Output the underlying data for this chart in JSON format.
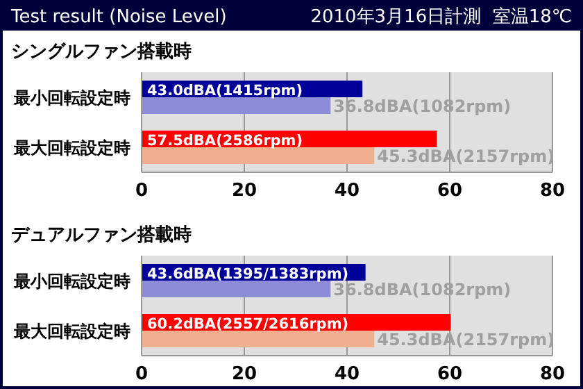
{
  "chart_data": [
    {
      "type": "bar",
      "orientation": "horizontal",
      "title": "Test result (Noise Level)",
      "subtitle": "シングルファン搭載時",
      "annotations": [
        "2010年3月16日計測  室温18℃"
      ],
      "categories": [
        "最小回転設定時",
        "最大回転設定時"
      ],
      "xlim": [
        0,
        80
      ],
      "xticks": [
        0,
        20,
        40,
        60,
        80
      ],
      "grid": "x",
      "series": [
        {
          "values": [
            43.0,
            57.5
          ],
          "colors": [
            "#000099",
            "#ff0000"
          ],
          "value_labels": [
            "43.0dBA(1415rpm)",
            "57.5dBA(2586rpm)"
          ]
        },
        {
          "values": [
            36.8,
            45.3
          ],
          "colors": [
            "#8c8cd9",
            "#f0b090"
          ],
          "value_labels": [
            "36.8dBA(1082rpm)",
            "45.3dBA(2157rpm)"
          ]
        }
      ]
    },
    {
      "type": "bar",
      "orientation": "horizontal",
      "subtitle": "デュアルファン搭載時",
      "categories": [
        "最小回転設定時",
        "最大回転設定時"
      ],
      "xlim": [
        0,
        80
      ],
      "xticks": [
        0,
        20,
        40,
        60,
        80
      ],
      "grid": "x",
      "series": [
        {
          "values": [
            43.6,
            60.2
          ],
          "colors": [
            "#000099",
            "#ff0000"
          ],
          "value_labels": [
            "43.6dBA(1395/1383rpm)",
            "60.2dBA(2557/2616rpm)"
          ]
        },
        {
          "values": [
            36.8,
            45.3
          ],
          "colors": [
            "#8c8cd9",
            "#f0b090"
          ],
          "value_labels": [
            "36.8dBA(1082rpm)",
            "45.3dBA(2157rpm)"
          ]
        }
      ]
    }
  ]
}
